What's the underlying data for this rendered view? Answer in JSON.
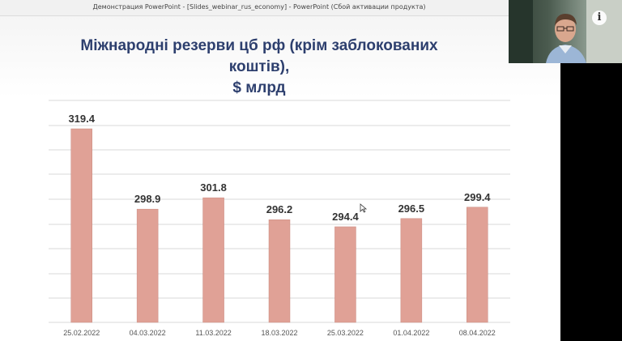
{
  "window": {
    "title": "Демонстрация PowerPoint - [Slides_webinar_rus_economy] - PowerPoint (Сбой активации продукта)"
  },
  "webcam": {
    "overlay_icon": "info-icon",
    "info_label": "i"
  },
  "slide": {
    "title_line1": "Міжнародні резерви цб рф (крім заблокованих коштів),",
    "title_line2": "$ млрд"
  },
  "colors": {
    "bar": "#e0a196",
    "bar_stroke": "#c98b80",
    "label": "#333333",
    "tick": "#555555",
    "grid": "#d9d9d9",
    "title": "#2d3f6e"
  },
  "chart_data": {
    "type": "bar",
    "title": "Міжнародні резерви цб рф (крім заблокованих коштів), $ млрд",
    "categories": [
      "25.02.2022",
      "04.03.2022",
      "11.03.2022",
      "18.03.2022",
      "25.03.2022",
      "01.04.2022",
      "08.04.2022"
    ],
    "values": [
      319.4,
      298.9,
      301.8,
      296.2,
      294.4,
      296.5,
      299.4
    ],
    "data_labels": [
      "319.4",
      "298.9",
      "301.8",
      "296.2",
      "294.4",
      "296.5",
      "299.4"
    ],
    "ylim": [
      270,
      325
    ],
    "grid": true,
    "legend": "none"
  }
}
